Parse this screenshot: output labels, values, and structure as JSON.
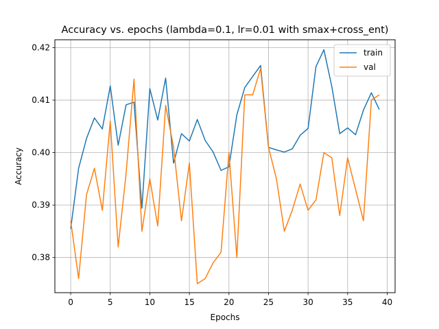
{
  "chart_data": {
    "type": "line",
    "title": "Accuracy vs. epochs (lambda=0.1, lr=0.01 with smax+cross_ent)",
    "xlabel": "Epochs",
    "ylabel": "Accuracy",
    "xlim": [
      -2,
      41
    ],
    "ylim": [
      0.3733,
      0.4215
    ],
    "xticks": [
      0,
      5,
      10,
      15,
      20,
      25,
      30,
      35,
      40
    ],
    "yticks": [
      0.38,
      0.39,
      0.4,
      0.41,
      0.42
    ],
    "ytick_labels": [
      "0.38",
      "0.39",
      "0.40",
      "0.41",
      "0.42"
    ],
    "grid": true,
    "legend_position": "top-right",
    "x": [
      0,
      1,
      2,
      3,
      4,
      5,
      6,
      7,
      8,
      9,
      10,
      11,
      12,
      13,
      14,
      15,
      16,
      17,
      18,
      19,
      20,
      21,
      22,
      23,
      24,
      25,
      26,
      27,
      28,
      29,
      30,
      31,
      32,
      33,
      34,
      35,
      36,
      37,
      38,
      39
    ],
    "series": [
      {
        "name": "train",
        "color": "#1f77b4",
        "values": [
          0.3855,
          0.397,
          0.4027,
          0.4066,
          0.4045,
          0.4127,
          0.4014,
          0.4091,
          0.4096,
          0.3894,
          0.4122,
          0.4062,
          0.4142,
          0.398,
          0.4036,
          0.4022,
          0.4063,
          0.4023,
          0.4001,
          0.3966,
          0.3973,
          0.4072,
          0.4124,
          0.4145,
          0.4166,
          0.401,
          0.4005,
          0.4001,
          0.4007,
          0.4033,
          0.4046,
          0.4164,
          0.4196,
          0.4126,
          0.4036,
          0.4047,
          0.4034,
          0.4081,
          0.4114,
          0.4082
        ]
      },
      {
        "name": "val",
        "color": "#ff7f0e",
        "values": [
          0.387,
          0.376,
          0.392,
          0.397,
          0.389,
          0.406,
          0.382,
          0.396,
          0.414,
          0.385,
          0.395,
          0.386,
          0.409,
          0.401,
          0.387,
          0.398,
          0.375,
          0.376,
          0.379,
          0.381,
          0.4,
          0.38,
          0.411,
          0.411,
          0.416,
          0.401,
          0.395,
          0.385,
          0.389,
          0.394,
          0.389,
          0.391,
          0.4,
          0.399,
          0.388,
          0.399,
          0.393,
          0.387,
          0.41,
          0.411
        ]
      }
    ]
  }
}
